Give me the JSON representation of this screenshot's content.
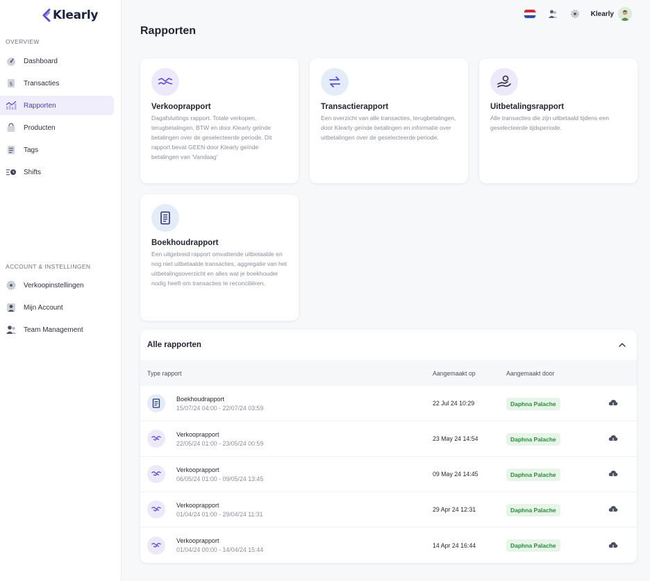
{
  "app": {
    "brand": "Klearly"
  },
  "sidebar": {
    "overview_title": "OVERVIEW",
    "overview_items": [
      {
        "label": "Dashboard",
        "icon": "dashboard-gauge-icon"
      },
      {
        "label": "Transacties",
        "icon": "receipt-icon"
      },
      {
        "label": "Rapporten",
        "icon": "chart-icon",
        "active": true
      },
      {
        "label": "Producten",
        "icon": "shopping-bag-icon"
      },
      {
        "label": "Tags",
        "icon": "tag-document-icon"
      },
      {
        "label": "Shifts",
        "icon": "shift-clock-icon"
      }
    ],
    "account_title": "ACCOUNT & INSTELLINGEN",
    "account_items": [
      {
        "label": "Verkoopinstellingen",
        "icon": "gear-icon"
      },
      {
        "label": "Mijn Account",
        "icon": "user-icon"
      },
      {
        "label": "Team Management",
        "icon": "team-icon"
      }
    ]
  },
  "topbar": {
    "language_flag": "nl-flag-icon",
    "user_name": "Klearly"
  },
  "page": {
    "title": "Rapporten"
  },
  "report_cards": [
    {
      "title": "Verkooprapport",
      "icon": "handshake-icon",
      "description": "Dagafsluitings rapport. Totale verkopen, terugbetalingen, BTW en door Klearly geïnde betalingen over de geselecteerde periode. Dit rapport bevat GEEN door Klearly geïnde betalingen van 'Vandaag'"
    },
    {
      "title": "Transactierapport",
      "icon": "swap-arrows-icon",
      "description": "Een overzicht van alle transacties, terugbetalingen, door Klearly geïnde betalingen en informatie over uitbetalingen over de geselecteerde periode."
    },
    {
      "title": "Uitbetalingsrapport",
      "icon": "hand-payout-icon",
      "description": "Alle transacties die zijn uitbetaald tijdens een geselecteerde tijdsperiode."
    },
    {
      "title": "Boekhoudrapport",
      "icon": "ledger-document-icon",
      "description": "Een uitgebreid rapport omvattende uitbetaalde en nog niet uitbetaalde transacties, aggregatie van het uitbetalingsoverzicht en alles wat je boekhouder nodig heeft om transacties te reconciliëren."
    }
  ],
  "all_reports": {
    "title": "Alle rapporten",
    "columns": {
      "type": "Type rapport",
      "created_on": "Aangemaakt op",
      "created_by": "Aangemaakt door"
    },
    "rows": [
      {
        "type": "Boekhoudrapport",
        "range": "15/07/24 04:00 - 22/07/24 03:59",
        "created_on": "22 Jul 24 10:29",
        "created_by": "Daphna Palache",
        "icon": "ledger-document-icon"
      },
      {
        "type": "Verkooprapport",
        "range": "22/05/24 01:00 - 23/05/24 00:59",
        "created_on": "23 May 24 14:54",
        "created_by": "Daphna Palache",
        "icon": "handshake-icon"
      },
      {
        "type": "Verkooprapport",
        "range": "06/05/24 01:00 - 09/05/24 13:45",
        "created_on": "09 May 24 14:45",
        "created_by": "Daphna Palache",
        "icon": "handshake-icon"
      },
      {
        "type": "Verkooprapport",
        "range": "01/04/24 01:00 - 29/04/24 11:31",
        "created_on": "29 Apr 24 12:31",
        "created_by": "Daphna Palache",
        "icon": "handshake-icon"
      },
      {
        "type": "Verkooprapport",
        "range": "01/04/24 00:00 - 14/04/24 15:44",
        "created_on": "14 Apr 24 16:44",
        "created_by": "Daphna Palache",
        "icon": "handshake-icon"
      }
    ]
  },
  "colors": {
    "accent": "#5b4fd0",
    "active_nav_bg": "#f0edfc",
    "badge_bg": "#e7f4e8",
    "badge_text": "#2e8a3e",
    "icon_bubble": "#ede9fb",
    "icon_bubble_blue": "#e3ecf8"
  }
}
